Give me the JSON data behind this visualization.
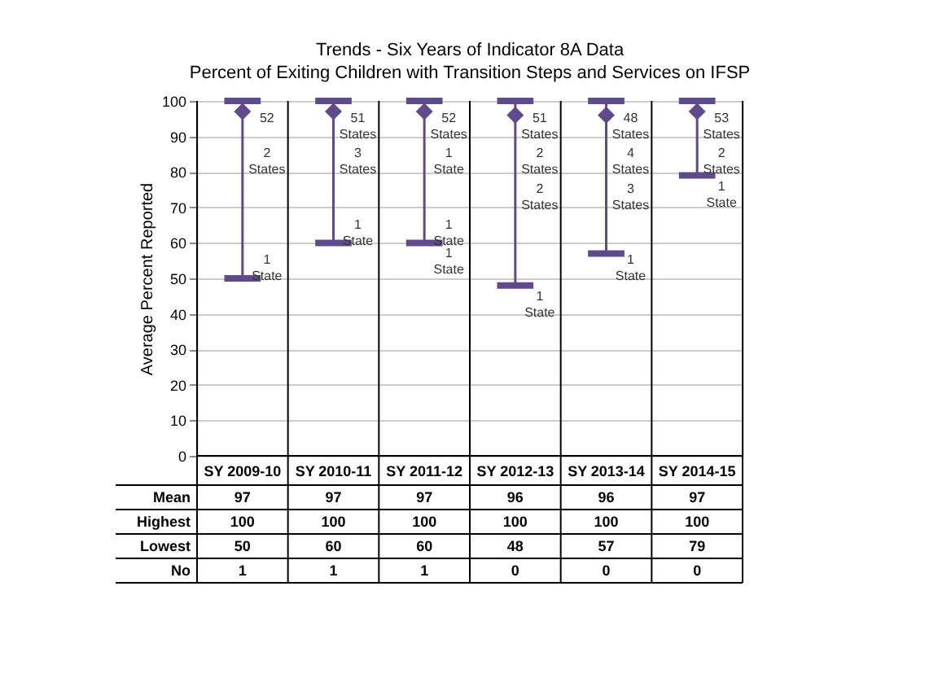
{
  "chart_data": {
    "type": "scatter",
    "title": "Trends - Six Years of Indicator 8A Data",
    "subtitle": "Percent of Exiting Children with Transition Steps and Services on IFSP",
    "ylabel": "Average Percent Reported",
    "categories": [
      "SY 2009-10",
      "SY 2010-11",
      "SY 2011-12",
      "SY 2012-13",
      "SY 2013-14",
      "SY 2014-15"
    ],
    "series": [
      {
        "name": "Mean",
        "color": "#5f4b8b",
        "values": [
          97,
          97,
          97,
          96,
          96,
          97
        ],
        "errors": [
          [
            50,
            100
          ],
          [
            60,
            100
          ],
          [
            60,
            100
          ],
          [
            48,
            100
          ],
          [
            57,
            100
          ],
          [
            79,
            100
          ]
        ]
      }
    ],
    "marker": "diamond",
    "data_labels": true,
    "grid": "y",
    "ylim": [
      0,
      100
    ],
    "yticks": [
      0,
      10,
      20,
      30,
      40,
      50,
      60,
      70,
      80,
      90,
      100
    ],
    "annotations": [
      "Highest",
      "100",
      "100",
      "100",
      "100",
      "100",
      "100",
      "Lowest",
      "50",
      "60",
      "60",
      "48",
      "57",
      "79",
      "No",
      "1",
      "1",
      "1",
      "0",
      "0",
      "0",
      {
        "text": "52",
        "x": "SY 2009-10",
        "y": 95
      },
      {
        "text": "2 States",
        "x": "SY 2009-10",
        "y": 85
      },
      {
        "text": "1 State",
        "x": "SY 2009-10",
        "y": 55
      },
      {
        "text": "51 States",
        "x": "SY 2010-11",
        "y": 95
      },
      {
        "text": "3 States",
        "x": "SY 2010-11",
        "y": 85
      },
      {
        "text": "1 State",
        "x": "SY 2010-11",
        "y": 65
      },
      {
        "text": "52 States",
        "x": "SY 2011-12",
        "y": 95
      },
      {
        "text": "1 State",
        "x": "SY 2011-12",
        "y": 85
      },
      {
        "text": "1 State",
        "x": "SY 2011-12",
        "y": 65
      },
      {
        "text": "1 State",
        "x": "SY 2011-12",
        "y": 60
      },
      {
        "text": "51 States",
        "x": "SY 2012-13",
        "y": 95
      },
      {
        "text": "2 States",
        "x": "SY 2012-13",
        "y": 85
      },
      {
        "text": "2 States",
        "x": "SY 2012-13",
        "y": 75
      },
      {
        "text": "1 State",
        "x": "SY 2012-13",
        "y": 48
      },
      {
        "text": "48 States",
        "x": "SY 2013-14",
        "y": 95
      },
      {
        "text": "4 States",
        "x": "SY 2013-14",
        "y": 85
      },
      {
        "text": "3 States",
        "x": "SY 2013-14",
        "y": 75
      },
      {
        "text": "1 State",
        "x": "SY 2013-14",
        "y": 55
      },
      {
        "text": "53 States",
        "x": "SY 2014-15",
        "y": 95
      },
      {
        "text": "2 States",
        "x": "SY 2014-15",
        "y": 85
      },
      {
        "text": "1 State",
        "x": "SY 2014-15",
        "y": 79
      }
    ]
  }
}
